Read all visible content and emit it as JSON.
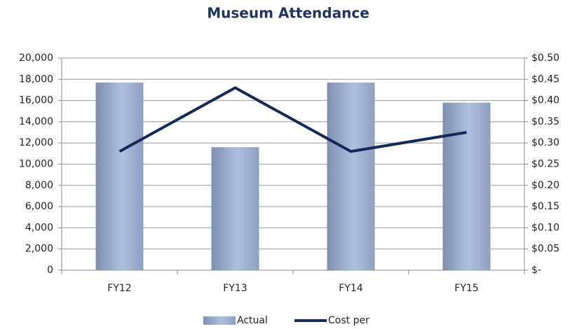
{
  "chart_data": {
    "type": "bar",
    "title": "Museum Attendance",
    "categories": [
      "FY12",
      "FY13",
      "FY14",
      "FY15"
    ],
    "series": [
      {
        "name": "Actual",
        "type": "bar",
        "color": "#aebfe0",
        "values": [
          17700,
          11600,
          17700,
          15800
        ]
      },
      {
        "name": "Cost per",
        "type": "line",
        "axis": "y2",
        "color": "#14285a",
        "values": [
          0.28,
          0.43,
          0.28,
          0.325
        ]
      }
    ],
    "ylim": [
      0,
      20000
    ],
    "yticks": [
      0,
      {
        "value": 2000,
        "label": "2,000"
      },
      {
        "value": 4000,
        "label": "4,000"
      },
      {
        "value": 6000,
        "label": "6,000"
      },
      {
        "value": 8000,
        "label": "8,000"
      },
      {
        "value": 10000,
        "label": "10,000"
      },
      {
        "value": 12000,
        "label": "12,000"
      },
      {
        "value": 14000,
        "label": "14,000"
      },
      {
        "value": 16000,
        "label": "16,000"
      },
      {
        "value": 18000,
        "label": "18,000"
      },
      {
        "value": 20000,
        "label": "20,000"
      }
    ],
    "y2lim": [
      0,
      0.5
    ],
    "y2ticks": [
      {
        "value": 0,
        "label": "$-"
      },
      {
        "value": 0.05,
        "label": "$0.05"
      },
      {
        "value": 0.1,
        "label": "$0.10"
      },
      {
        "value": 0.15,
        "label": "$0.15"
      },
      {
        "value": 0.2,
        "label": "$0.20"
      },
      {
        "value": 0.25,
        "label": "$0.25"
      },
      {
        "value": 0.3,
        "label": "$0.30"
      },
      {
        "value": 0.35,
        "label": "$0.35"
      },
      {
        "value": 0.4,
        "label": "$0.40"
      },
      {
        "value": 0.45,
        "label": "$0.45"
      },
      {
        "value": 0.5,
        "label": "$0.50"
      }
    ],
    "grid": true,
    "legend": "bottom"
  }
}
